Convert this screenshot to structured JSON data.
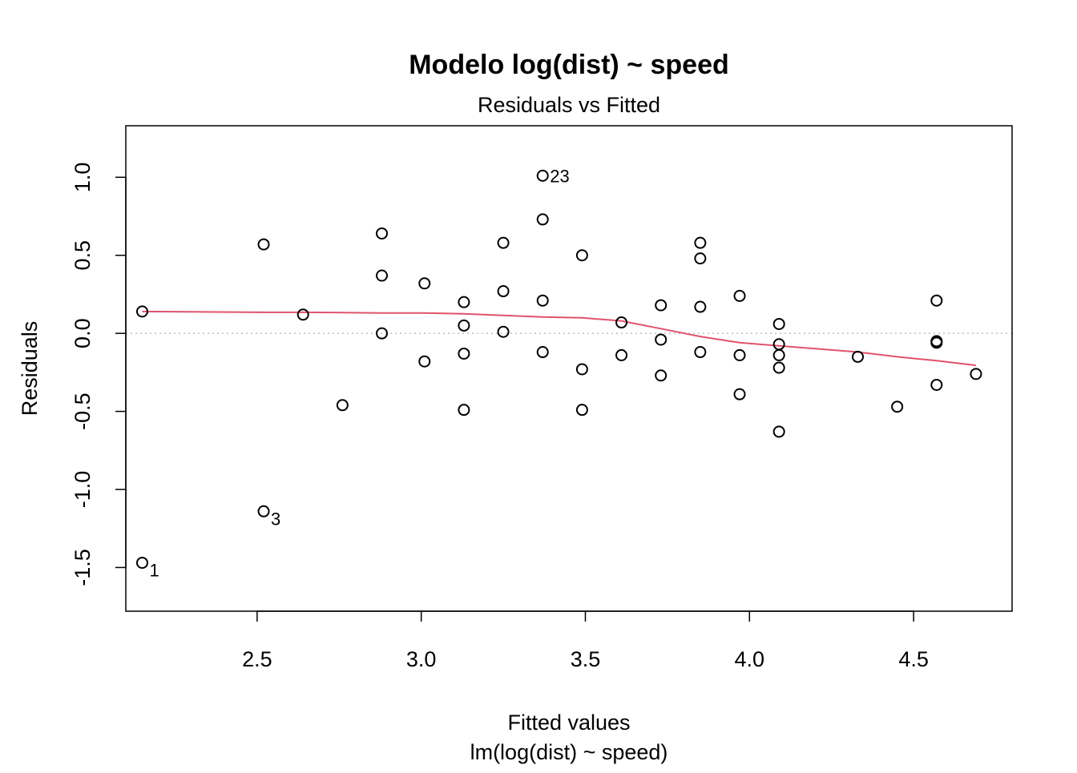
{
  "chart_data": {
    "type": "scatter",
    "title": "Modelo log(dist) ~ speed",
    "subtitle": "Residuals vs Fitted",
    "xlabel": "Fitted values",
    "xlabel_sub": "lm(log(dist) ~ speed)",
    "ylabel": "Residuals",
    "xlim": [
      2.1,
      4.8
    ],
    "ylim": [
      -1.78,
      1.33
    ],
    "xticks": [
      2.5,
      3.0,
      3.5,
      4.0,
      4.5
    ],
    "xtick_labels": [
      "2.5",
      "3.0",
      "3.5",
      "4.0",
      "4.5"
    ],
    "yticks": [
      -1.5,
      -1.0,
      -0.5,
      0.0,
      0.5,
      1.0
    ],
    "ytick_labels": [
      "-1.5",
      "-1.0",
      "-0.5",
      "0.0",
      "0.5",
      "1.0"
    ],
    "grid": false,
    "reference_line": {
      "y": 0,
      "style": "dotted",
      "color": "#BEBEBE"
    },
    "points": [
      {
        "x": 2.15,
        "y": 0.14
      },
      {
        "x": 2.15,
        "y": -1.47
      },
      {
        "x": 2.52,
        "y": 0.57
      },
      {
        "x": 2.52,
        "y": -1.14
      },
      {
        "x": 2.64,
        "y": 0.12
      },
      {
        "x": 2.76,
        "y": -0.46
      },
      {
        "x": 2.88,
        "y": 0.64
      },
      {
        "x": 2.88,
        "y": 0.37
      },
      {
        "x": 2.88,
        "y": 0.0
      },
      {
        "x": 3.01,
        "y": 0.32
      },
      {
        "x": 3.01,
        "y": -0.18
      },
      {
        "x": 3.13,
        "y": 0.2
      },
      {
        "x": 3.13,
        "y": 0.05
      },
      {
        "x": 3.13,
        "y": -0.13
      },
      {
        "x": 3.13,
        "y": -0.49
      },
      {
        "x": 3.25,
        "y": 0.58
      },
      {
        "x": 3.25,
        "y": 0.27
      },
      {
        "x": 3.25,
        "y": 0.01
      },
      {
        "x": 3.37,
        "y": 1.01
      },
      {
        "x": 3.37,
        "y": 0.73
      },
      {
        "x": 3.37,
        "y": 0.21
      },
      {
        "x": 3.37,
        "y": -0.12
      },
      {
        "x": 3.49,
        "y": 0.5
      },
      {
        "x": 3.49,
        "y": -0.23
      },
      {
        "x": 3.49,
        "y": -0.49
      },
      {
        "x": 3.61,
        "y": 0.07
      },
      {
        "x": 3.61,
        "y": -0.14
      },
      {
        "x": 3.73,
        "y": 0.18
      },
      {
        "x": 3.73,
        "y": -0.04
      },
      {
        "x": 3.73,
        "y": -0.27
      },
      {
        "x": 3.85,
        "y": 0.58
      },
      {
        "x": 3.85,
        "y": 0.48
      },
      {
        "x": 3.85,
        "y": 0.17
      },
      {
        "x": 3.85,
        "y": -0.12
      },
      {
        "x": 3.97,
        "y": 0.24
      },
      {
        "x": 3.97,
        "y": -0.14
      },
      {
        "x": 3.97,
        "y": -0.39
      },
      {
        "x": 4.09,
        "y": 0.06
      },
      {
        "x": 4.09,
        "y": -0.07
      },
      {
        "x": 4.09,
        "y": -0.14
      },
      {
        "x": 4.09,
        "y": -0.22
      },
      {
        "x": 4.09,
        "y": -0.63
      },
      {
        "x": 4.33,
        "y": -0.15
      },
      {
        "x": 4.45,
        "y": -0.47
      },
      {
        "x": 4.57,
        "y": 0.21
      },
      {
        "x": 4.57,
        "y": -0.05
      },
      {
        "x": 4.57,
        "y": -0.06
      },
      {
        "x": 4.57,
        "y": -0.33
      },
      {
        "x": 4.69,
        "y": -0.26
      }
    ],
    "point_labels": [
      {
        "x": 2.15,
        "y": -1.47,
        "text": "1",
        "position": "lower-right"
      },
      {
        "x": 2.52,
        "y": -1.14,
        "text": "3",
        "position": "lower-right"
      },
      {
        "x": 3.37,
        "y": 1.01,
        "text": "23",
        "position": "right"
      }
    ],
    "smooth_line": {
      "color": "#DF536B",
      "x": [
        2.15,
        2.52,
        2.64,
        2.76,
        2.88,
        3.01,
        3.13,
        3.25,
        3.37,
        3.49,
        3.61,
        3.73,
        3.85,
        3.97,
        4.09,
        4.33,
        4.45,
        4.57,
        4.69
      ],
      "y": [
        0.14,
        0.135,
        0.135,
        0.133,
        0.13,
        0.13,
        0.125,
        0.115,
        0.105,
        0.1,
        0.08,
        0.03,
        -0.02,
        -0.06,
        -0.08,
        -0.12,
        -0.15,
        -0.175,
        -0.205
      ]
    }
  }
}
